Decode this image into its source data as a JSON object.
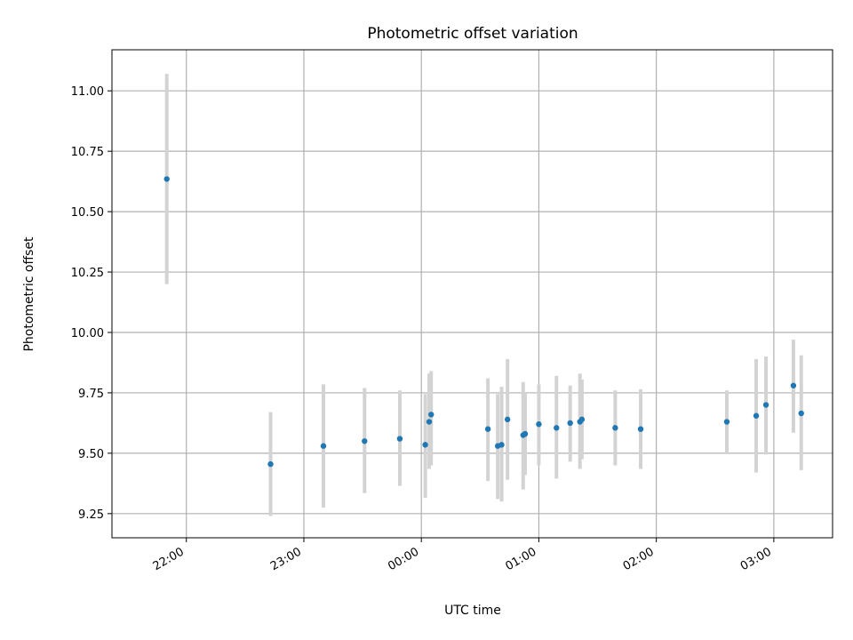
{
  "chart_data": {
    "type": "scatter",
    "title": "Photometric offset variation",
    "xlabel": "UTC time",
    "ylabel": "Photometric offset",
    "x_ticks": [
      {
        "label": "22:00",
        "hours": 22.0
      },
      {
        "label": "23:00",
        "hours": 23.0
      },
      {
        "label": "00:00",
        "hours": 24.0
      },
      {
        "label": "01:00",
        "hours": 25.0
      },
      {
        "label": "02:00",
        "hours": 26.0
      },
      {
        "label": "03:00",
        "hours": 27.0
      }
    ],
    "y_ticks": [
      "9.25",
      "9.50",
      "9.75",
      "10.00",
      "10.25",
      "10.50",
      "10.75",
      "11.00"
    ],
    "xlim": [
      "21:22",
      "03:30"
    ],
    "ylim": [
      9.15,
      11.17
    ],
    "grid": true,
    "colors": {
      "point": "#1f77b4",
      "errorbar": "#d3d3d3",
      "grid": "#b0b0b0"
    },
    "points": [
      {
        "time": "21:50",
        "value": 10.635,
        "err_low": 10.2,
        "err_high": 11.07
      },
      {
        "time": "22:43",
        "value": 9.455,
        "err_low": 9.24,
        "err_high": 9.67
      },
      {
        "time": "23:10",
        "value": 9.53,
        "err_low": 9.275,
        "err_high": 9.785
      },
      {
        "time": "23:31",
        "value": 9.55,
        "err_low": 9.335,
        "err_high": 9.77
      },
      {
        "time": "23:49",
        "value": 9.56,
        "err_low": 9.365,
        "err_high": 9.76
      },
      {
        "time": "00:02",
        "value": 9.535,
        "err_low": 9.315,
        "err_high": 9.745
      },
      {
        "time": "00:04",
        "value": 9.63,
        "err_low": 9.435,
        "err_high": 9.83
      },
      {
        "time": "00:05",
        "value": 9.66,
        "err_low": 9.45,
        "err_high": 9.84
      },
      {
        "time": "00:34",
        "value": 9.6,
        "err_low": 9.385,
        "err_high": 9.81
      },
      {
        "time": "00:39",
        "value": 9.53,
        "err_low": 9.31,
        "err_high": 9.745
      },
      {
        "time": "00:41",
        "value": 9.535,
        "err_low": 9.3,
        "err_high": 9.775
      },
      {
        "time": "00:44",
        "value": 9.64,
        "err_low": 9.39,
        "err_high": 9.89
      },
      {
        "time": "00:52",
        "value": 9.575,
        "err_low": 9.35,
        "err_high": 9.795
      },
      {
        "time": "00:53",
        "value": 9.58,
        "err_low": 9.41,
        "err_high": 9.75
      },
      {
        "time": "01:00",
        "value": 9.62,
        "err_low": 9.45,
        "err_high": 9.785
      },
      {
        "time": "01:09",
        "value": 9.605,
        "err_low": 9.395,
        "err_high": 9.82
      },
      {
        "time": "01:16",
        "value": 9.625,
        "err_low": 9.465,
        "err_high": 9.78
      },
      {
        "time": "01:21",
        "value": 9.63,
        "err_low": 9.435,
        "err_high": 9.83
      },
      {
        "time": "01:22",
        "value": 9.64,
        "err_low": 9.475,
        "err_high": 9.805
      },
      {
        "time": "01:39",
        "value": 9.605,
        "err_low": 9.45,
        "err_high": 9.76
      },
      {
        "time": "01:52",
        "value": 9.6,
        "err_low": 9.435,
        "err_high": 9.765
      },
      {
        "time": "02:36",
        "value": 9.63,
        "err_low": 9.5,
        "err_high": 9.76
      },
      {
        "time": "02:51",
        "value": 9.655,
        "err_low": 9.42,
        "err_high": 9.89
      },
      {
        "time": "02:56",
        "value": 9.7,
        "err_low": 9.495,
        "err_high": 9.9
      },
      {
        "time": "03:10",
        "value": 9.78,
        "err_low": 9.585,
        "err_high": 9.97
      },
      {
        "time": "03:14",
        "value": 9.665,
        "err_low": 9.43,
        "err_high": 9.905
      }
    ]
  }
}
